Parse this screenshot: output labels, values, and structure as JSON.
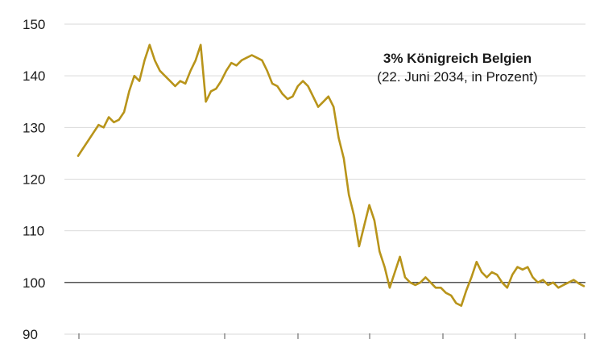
{
  "chart_data": {
    "type": "line",
    "title": "3% Königreich Belgien",
    "subtitle": "(22. Juni 2034, in Prozent)",
    "xlabel": "",
    "ylabel": "",
    "yticks": [
      90,
      100,
      110,
      120,
      130,
      140,
      150
    ],
    "yticks_shown": [
      "90",
      "100",
      "110",
      "120",
      "130",
      "140",
      "150"
    ],
    "ylim": [
      90,
      150
    ],
    "reference_line": 100,
    "grid": "horizontal",
    "line_color": "#b8941a",
    "series": [
      {
        "values": [
          124.5,
          126,
          127.5,
          129,
          130.5,
          130,
          132,
          131,
          131.5,
          133,
          137,
          140,
          139,
          143,
          146,
          143,
          141,
          140,
          139,
          138,
          139,
          138.5,
          141,
          143,
          146,
          135,
          137,
          137.5,
          139,
          141,
          142.5,
          142,
          143,
          143.5,
          144,
          143.5,
          143,
          141,
          138.5,
          138,
          136.5,
          135.5,
          136,
          138,
          139,
          138,
          136,
          134,
          135,
          136,
          134,
          128,
          124,
          117,
          113,
          107,
          111,
          115,
          112,
          106,
          103,
          99,
          102,
          105,
          101,
          100,
          99.5,
          100,
          101,
          100,
          99,
          99,
          98,
          97.5,
          96,
          95.5,
          98.5,
          101,
          104,
          102,
          101,
          102,
          101.5,
          100,
          99,
          101.5,
          103,
          102.5,
          103,
          101,
          100,
          100.5,
          99.5,
          100,
          99,
          99.5,
          100,
          100.5,
          99.8,
          99.3
        ]
      }
    ]
  }
}
